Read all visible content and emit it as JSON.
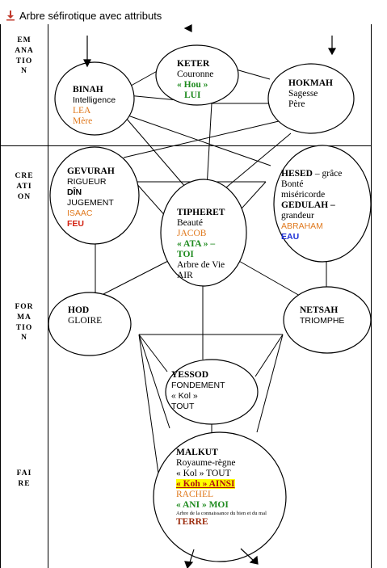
{
  "title": "Arbre séfirotique avec attributs",
  "zones": {
    "emanation": "EMANATION",
    "creation": "CREATION",
    "formation": "FORMATION",
    "faire": "FAIRE"
  },
  "keter": {
    "name": "KETER",
    "l1": "Couronne",
    "l2": "« Hou »",
    "l3": "LUI"
  },
  "binah": {
    "name": "BINAH",
    "l1": "Intelligence",
    "l2": "LEA",
    "l3": "Mère"
  },
  "hokmah": {
    "name": "HOKMAH",
    "l1": "Sagesse",
    "l2": "Père"
  },
  "gevurah": {
    "name": "GEVURAH",
    "l1": "RIGUEUR",
    "l2": "DÎN",
    "l3": "JUGEMENT",
    "l4": "ISAAC",
    "l5": "FEU"
  },
  "hesed": {
    "name": "HESED",
    "name_suffix": " – grâce",
    "l1": "Bonté",
    "l2": "miséricorde",
    "l3": "GEDULAH –",
    "l4": "grandeur",
    "l5": "ABRAHAM",
    "l6": "EAU"
  },
  "tiphereth": {
    "name": "TIPHERET",
    "l1": "Beauté",
    "l2": "JACOB",
    "l3": "« ATA » –",
    "l4": "TOI",
    "l5": "Arbre de Vie",
    "l6": "AIR"
  },
  "hod": {
    "name": "HOD",
    "l1": "GLOIRE"
  },
  "netsah": {
    "name": "NETSAH",
    "l1": "TRIOMPHE"
  },
  "yessod": {
    "name": "YESSOD",
    "l1": "FONDEMENT",
    "l2": "« Kol »",
    "l3": "TOUT"
  },
  "malkut": {
    "name": "MALKUT",
    "l1": "Royaume-règne",
    "l2": "« Kol » TOUT",
    "l3": "« Koh » AINSI",
    "l4": "RACHEL",
    "l5": "« ANI » MOI",
    "l6": "Arbre de la connaissance du bien et du mal",
    "l7": "TERRE"
  },
  "colors": {
    "orange": "#e07a1f",
    "green": "#1e8a1e",
    "red": "#d21f0f",
    "blue": "#1c2fd6",
    "brown": "#9b2b0d",
    "highlight": "#ffff00"
  }
}
